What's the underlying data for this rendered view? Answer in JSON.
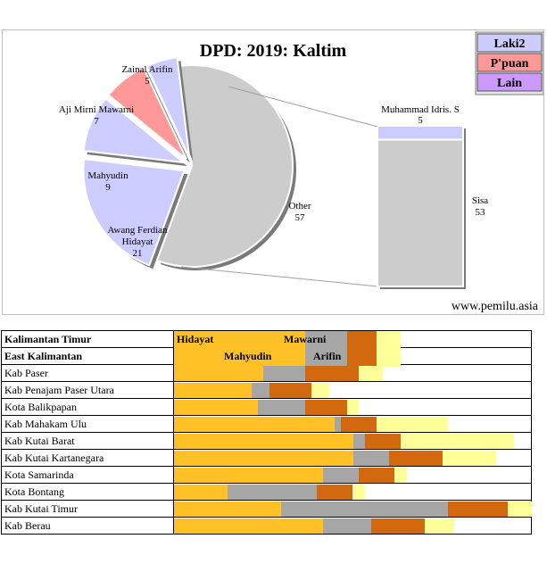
{
  "chart_data": {
    "type": "pie",
    "title": "DPD: 2019: Kaltim",
    "watermark": "www.pemilu.asia",
    "legend": [
      {
        "label": "Laki2",
        "color": "#ccccff"
      },
      {
        "label": "P'puan",
        "color": "#ff9999"
      },
      {
        "label": "Lain",
        "color": "#cc99ff"
      }
    ],
    "slices": [
      {
        "label": "Awang Ferdian Hidayat",
        "value": 21,
        "color": "#ccccff"
      },
      {
        "label": "Mahyudin",
        "value": 9,
        "color": "#ccccff"
      },
      {
        "label": "Aji Mirni Mawarni",
        "value": 7,
        "color": "#ff9999"
      },
      {
        "label": "Zainal Arifin",
        "value": 5,
        "color": "#ccccff"
      },
      {
        "label": "Other",
        "value": 57,
        "color": "#cccccc"
      }
    ],
    "breakdown": [
      {
        "label": "Muhammad Idris. S",
        "value": 5,
        "color": "#ccccff"
      },
      {
        "label": "Sisa",
        "value": 53,
        "color": "#cccccc"
      }
    ]
  },
  "table": {
    "header_rows": [
      "Kalimantan Timur",
      "East Kalimantan"
    ],
    "legend_labels": [
      "Hidayat",
      "Mahyudin",
      "Mawarni",
      "Arifin"
    ],
    "colors": [
      "#ffc125",
      "#a6a6a6",
      "#d2690e",
      "#ffff99"
    ],
    "rows": [
      {
        "name": "Kab Paser",
        "values": [
          15,
          7,
          9,
          4
        ]
      },
      {
        "name": "Kab Penajam Paser Utara",
        "values": [
          13,
          3,
          7,
          3
        ]
      },
      {
        "name": "Kota Balikpapan",
        "values": [
          14,
          8,
          7,
          2
        ]
      },
      {
        "name": "Kab Mahakam Ulu",
        "values": [
          27,
          1,
          6,
          12
        ]
      },
      {
        "name": "Kab Kutai Barat",
        "values": [
          30,
          2,
          6,
          19
        ]
      },
      {
        "name": "Kab Kutai Kartanegara",
        "values": [
          30,
          6,
          9,
          9
        ]
      },
      {
        "name": "Kota Samarinda",
        "values": [
          25,
          6,
          6,
          2
        ]
      },
      {
        "name": "Kota Bontang",
        "values": [
          9,
          15,
          6,
          2
        ]
      },
      {
        "name": "Kab Kutai Timur",
        "values": [
          18,
          28,
          10,
          4
        ]
      },
      {
        "name": "Kab Berau",
        "values": [
          25,
          8,
          9,
          5
        ]
      }
    ]
  }
}
